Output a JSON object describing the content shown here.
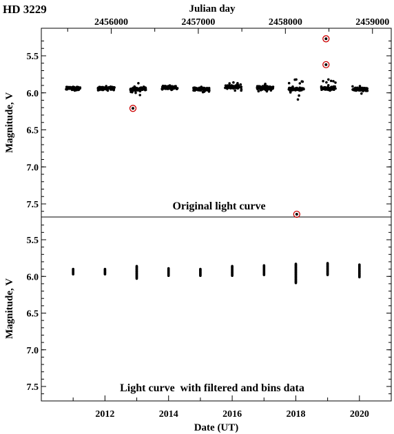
{
  "star_name": "HD 3229",
  "top_axis_title": "Julian day",
  "ylabel": "Magnitude, V",
  "xlabel": "Date (UT)",
  "colors": {
    "points": "#000000",
    "outlier_ring": "#cc0000",
    "axes": "#000000"
  },
  "chart_data": [
    {
      "type": "scatter",
      "title": "Original light curve",
      "x_axis_bottom": {
        "unit": "year",
        "range": [
          2010.0,
          2021.0
        ],
        "ticks": [
          "2012",
          "2014",
          "2016",
          "2018",
          "2020"
        ]
      },
      "x_axis_top": {
        "unit": "Julian day",
        "range": [
          2455197.5,
          2459215.5
        ],
        "ticks": [
          "2456000",
          "2457000",
          "2458000",
          "2459000"
        ]
      },
      "y_axis": {
        "range": [
          5.2,
          7.7
        ],
        "inverted": true,
        "ticks": [
          "5.5",
          "6.0",
          "6.5",
          "7.0",
          "7.5"
        ]
      },
      "season_clusters": [
        {
          "year_start": 2010.78,
          "year_end": 2011.22,
          "mag_min": 5.92,
          "mag_max": 5.97,
          "center": 5.94
        },
        {
          "year_start": 2011.78,
          "year_end": 2012.3,
          "mag_min": 5.91,
          "mag_max": 5.97,
          "center": 5.94
        },
        {
          "year_start": 2012.8,
          "year_end": 2013.3,
          "mag_min": 5.87,
          "mag_max": 6.03,
          "center": 5.95
        },
        {
          "year_start": 2013.78,
          "year_end": 2014.3,
          "mag_min": 5.9,
          "mag_max": 5.96,
          "center": 5.93
        },
        {
          "year_start": 2014.78,
          "year_end": 2015.28,
          "mag_min": 5.92,
          "mag_max": 5.99,
          "center": 5.95
        },
        {
          "year_start": 2015.78,
          "year_end": 2016.3,
          "mag_min": 5.86,
          "mag_max": 5.97,
          "center": 5.92
        },
        {
          "year_start": 2016.78,
          "year_end": 2017.3,
          "mag_min": 5.88,
          "mag_max": 5.98,
          "center": 5.93
        },
        {
          "year_start": 2017.78,
          "year_end": 2018.25,
          "mag_min": 5.82,
          "mag_max": 6.09,
          "center": 5.95
        },
        {
          "year_start": 2018.8,
          "year_end": 2019.25,
          "mag_min": 5.82,
          "mag_max": 5.97,
          "center": 5.94
        },
        {
          "year_start": 2019.78,
          "year_end": 2020.25,
          "mag_min": 5.91,
          "mag_max": 6.01,
          "center": 5.95
        }
      ],
      "outliers": [
        {
          "year": 2012.88,
          "mag": 6.21
        },
        {
          "year": 2018.03,
          "mag": 7.64
        },
        {
          "year": 2018.95,
          "mag": 5.27
        },
        {
          "year": 2018.95,
          "mag": 5.62
        }
      ]
    },
    {
      "type": "scatter",
      "title": "Light curve  with filtered and bins data",
      "x_axis_bottom": {
        "unit": "year",
        "range": [
          2010.0,
          2021.0
        ],
        "ticks": [
          "2012",
          "2014",
          "2016",
          "2018",
          "2020"
        ]
      },
      "y_axis": {
        "range": [
          5.2,
          7.7
        ],
        "inverted": true,
        "ticks": [
          "5.5",
          "6.0",
          "6.5",
          "7.0",
          "7.5"
        ]
      },
      "binned_columns": [
        {
          "year": 2011.0,
          "mag_min": 5.9,
          "mag_max": 5.97
        },
        {
          "year": 2012.0,
          "mag_min": 5.9,
          "mag_max": 5.97
        },
        {
          "year": 2013.0,
          "mag_min": 5.86,
          "mag_max": 6.03
        },
        {
          "year": 2014.0,
          "mag_min": 5.89,
          "mag_max": 5.99
        },
        {
          "year": 2015.0,
          "mag_min": 5.9,
          "mag_max": 5.99
        },
        {
          "year": 2016.0,
          "mag_min": 5.86,
          "mag_max": 5.99
        },
        {
          "year": 2017.0,
          "mag_min": 5.85,
          "mag_max": 5.98
        },
        {
          "year": 2018.0,
          "mag_min": 5.83,
          "mag_max": 6.09
        },
        {
          "year": 2019.0,
          "mag_min": 5.82,
          "mag_max": 5.98
        },
        {
          "year": 2020.0,
          "mag_min": 5.84,
          "mag_max": 6.01
        }
      ]
    }
  ]
}
